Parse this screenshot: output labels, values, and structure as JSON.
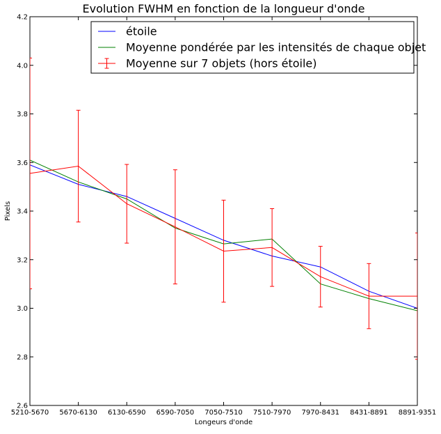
{
  "chart_data": {
    "type": "line",
    "title": "Evolution FWHM en fonction de la longueur d'onde",
    "xlabel": "Longeurs d'onde",
    "ylabel": "Pixels",
    "categories": [
      "5210-5670",
      "5670-6130",
      "6130-6590",
      "6590-7050",
      "7050-7510",
      "7510-7970",
      "7970-8431",
      "8431-8891",
      "8891-9351"
    ],
    "ylim": [
      2.6,
      4.2
    ],
    "yticks": [
      "2.6",
      "2.8",
      "3.0",
      "3.2",
      "3.4",
      "3.6",
      "3.8",
      "4.0",
      "4.2"
    ],
    "grid": false,
    "legend_position": "top-right",
    "series": [
      {
        "name": "étoile",
        "color": "#0000ff",
        "values": [
          3.59,
          3.51,
          3.46,
          3.37,
          3.28,
          3.215,
          3.17,
          3.07,
          3.0
        ]
      },
      {
        "name": "Moyenne pondérée par les intensités de chaque objet",
        "color": "#008000",
        "values": [
          3.61,
          3.52,
          3.45,
          3.33,
          3.265,
          3.285,
          3.1,
          3.04,
          2.99
        ]
      },
      {
        "name": "Moyenne sur 7 objets (hors étoile)",
        "color": "#ff0000",
        "error_bars": true,
        "values": [
          3.555,
          3.585,
          3.43,
          3.335,
          3.235,
          3.25,
          3.13,
          3.05,
          3.05
        ],
        "errors": [
          0.475,
          0.23,
          0.162,
          0.235,
          0.21,
          0.16,
          0.125,
          0.134,
          0.26
        ]
      }
    ]
  }
}
